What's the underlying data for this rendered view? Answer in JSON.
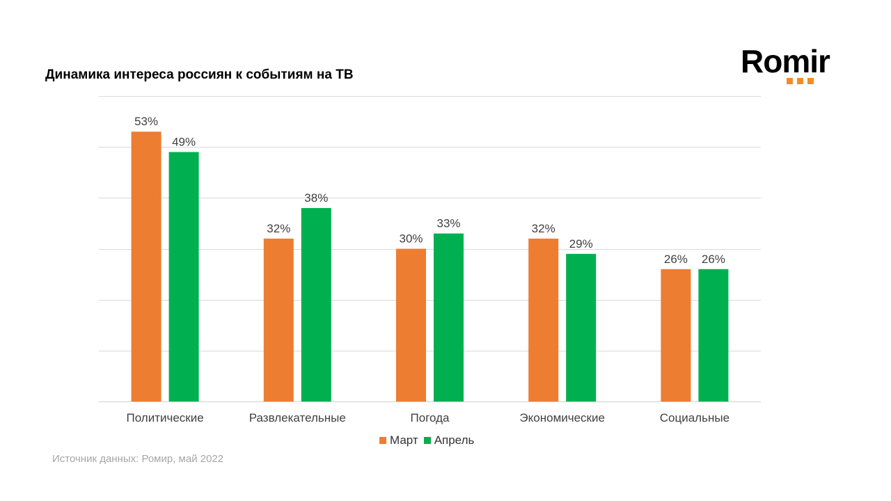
{
  "title": "Динамика интереса россиян к событиям на ТВ",
  "logo": {
    "text": "Romir",
    "accent_color": "#f28c28"
  },
  "source": "Источник данных: Ромир, май 2022",
  "chart_data": {
    "type": "bar",
    "title": "Динамика интереса россиян к событиям на ТВ",
    "categories": [
      "Политические",
      "Развлекательные",
      "Погода",
      "Экономические",
      "Социальные"
    ],
    "series": [
      {
        "name": "Март",
        "color": "#ed7d31",
        "values": [
          53,
          32,
          30,
          32,
          26
        ]
      },
      {
        "name": "Апрель",
        "color": "#00b050",
        "values": [
          49,
          38,
          33,
          29,
          26
        ]
      }
    ],
    "value_suffix": "%",
    "ylim": [
      0,
      60
    ],
    "grid": true,
    "legend": "bottom",
    "xlabel": "",
    "ylabel": ""
  }
}
